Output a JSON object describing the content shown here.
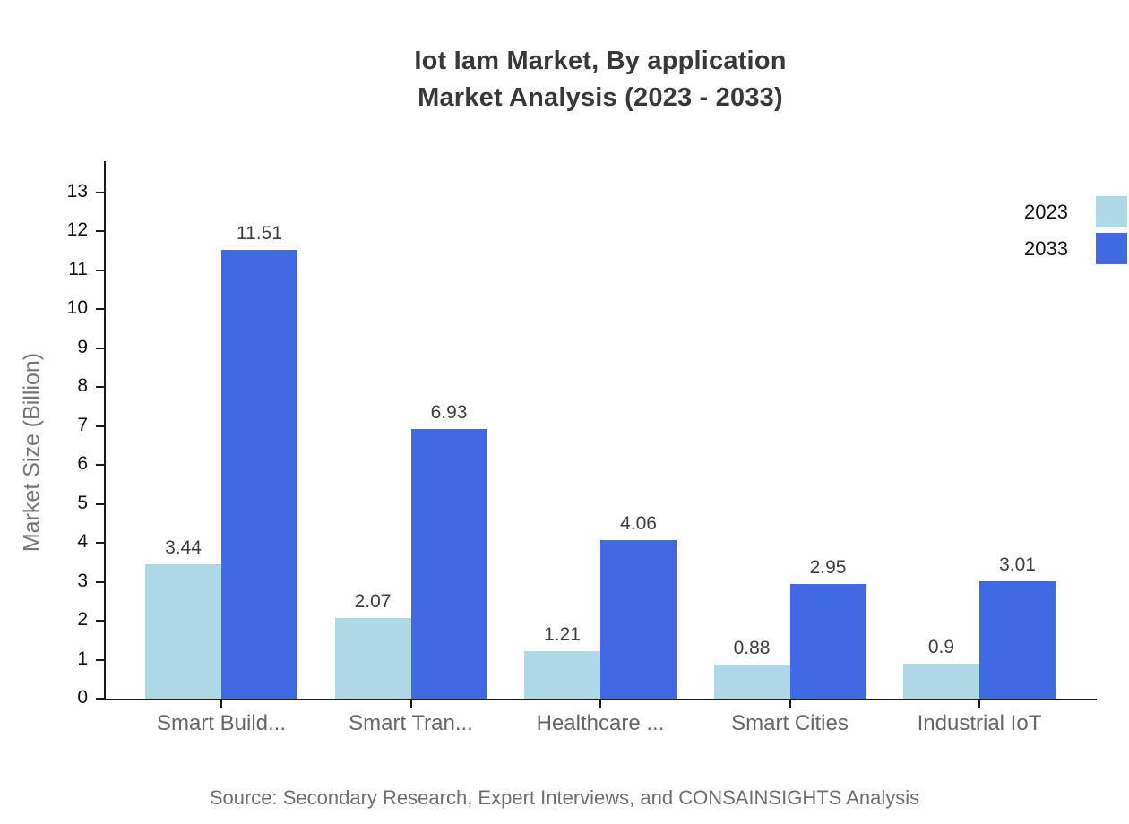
{
  "title": {
    "line1": "Iot Iam Market, By application",
    "line2": "Market Analysis (2023 - 2033)"
  },
  "source": "Source: Secondary Research, Expert Interviews, and CONSAINSIGHTS Analysis",
  "chart_data": {
    "type": "bar",
    "title": "Iot Iam Market, By application Market Analysis (2023 - 2033)",
    "categories": [
      "Smart Build...",
      "Smart Tran...",
      "Healthcare ...",
      "Smart Cities",
      "Industrial IoT"
    ],
    "series": [
      {
        "name": "2023",
        "color": "#add8e6",
        "values": [
          3.44,
          2.07,
          1.21,
          0.88,
          0.9
        ]
      },
      {
        "name": "2033",
        "color": "#4169e1",
        "values": [
          11.51,
          6.93,
          4.06,
          2.95,
          3.01
        ]
      }
    ],
    "xlabel": "",
    "ylabel": "Market Size (Billion)",
    "ylim": [
      0,
      13
    ],
    "yticks": [
      0,
      1,
      2,
      3,
      4,
      5,
      6,
      7,
      8,
      9,
      10,
      11,
      12,
      13
    ],
    "grid": false,
    "legend_position": "top-right",
    "bar_value_labels": true,
    "axis_color": "#1a1a1a",
    "text_colors": {
      "title": "#383838",
      "tick": "#111111",
      "category": "#666666",
      "value_label": "#3d3d3d",
      "source": "#6e6e6e"
    }
  }
}
